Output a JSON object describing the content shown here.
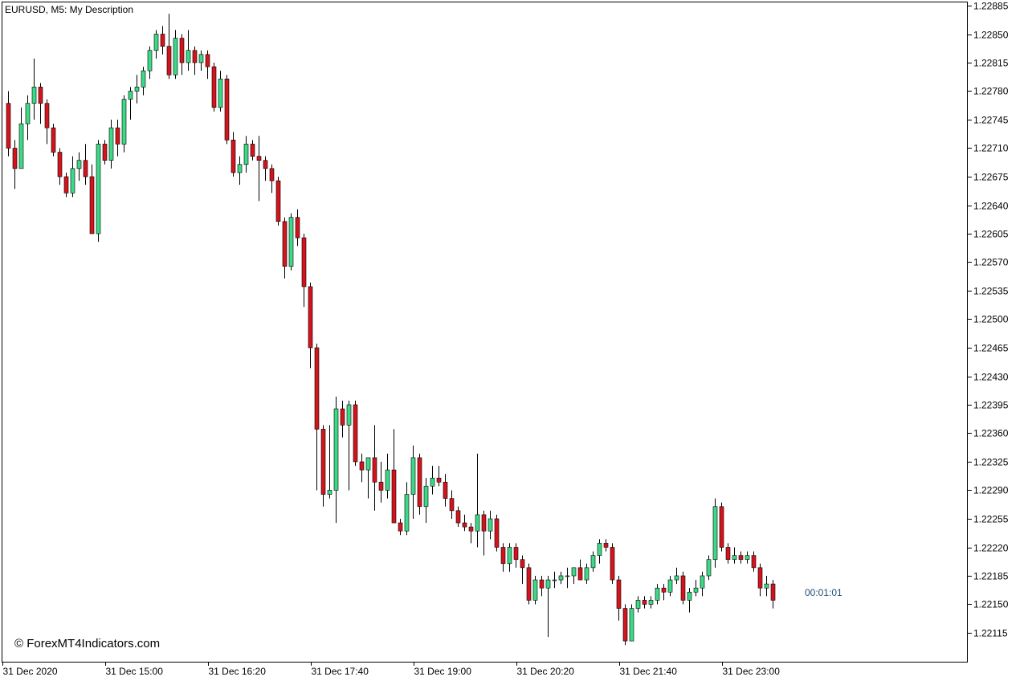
{
  "header": {
    "symbol_line": "EURUSD, M5:  My Description"
  },
  "watermark": "© ForexMT4Indicators.com",
  "timer": "00:01:01",
  "colors": {
    "bull": "#3cd986",
    "bear": "#d4141c",
    "wick": "#000000",
    "background": "#ffffff",
    "frame": "#000000"
  },
  "chart_data": {
    "type": "candlestick",
    "symbol": "EURUSD",
    "timeframe": "M5",
    "ylim": [
      1.2209,
      1.22895
    ],
    "yticks": [
      "1.22885",
      "1.22850",
      "1.22815",
      "1.22780",
      "1.22745",
      "1.22710",
      "1.22675",
      "1.22640",
      "1.22605",
      "1.22570",
      "1.22535",
      "1.22500",
      "1.22465",
      "1.22430",
      "1.22395",
      "1.22360",
      "1.22325",
      "1.22290",
      "1.22255",
      "1.22220",
      "1.22185",
      "1.22150",
      "1.22115"
    ],
    "xticks": [
      {
        "label": "31 Dec 2020",
        "bar": 0
      },
      {
        "label": "31 Dec 15:00",
        "bar": 16
      },
      {
        "label": "31 Dec 16:20",
        "bar": 32
      },
      {
        "label": "31 Dec 17:40",
        "bar": 48
      },
      {
        "label": "31 Dec 19:00",
        "bar": 64
      },
      {
        "label": "31 Dec 20:20",
        "bar": 80
      },
      {
        "label": "31 Dec 21:40",
        "bar": 96
      },
      {
        "label": "31 Dec 23:00",
        "bar": 112
      }
    ],
    "grid": false,
    "candles": [
      {
        "o": 1.22765,
        "h": 1.2278,
        "l": 1.227,
        "c": 1.2271
      },
      {
        "o": 1.2271,
        "h": 1.2272,
        "l": 1.2266,
        "c": 1.22685
      },
      {
        "o": 1.22685,
        "h": 1.2276,
        "l": 1.22685,
        "c": 1.2274
      },
      {
        "o": 1.2274,
        "h": 1.22775,
        "l": 1.2272,
        "c": 1.22765
      },
      {
        "o": 1.22765,
        "h": 1.2282,
        "l": 1.22745,
        "c": 1.22785
      },
      {
        "o": 1.22785,
        "h": 1.2279,
        "l": 1.2274,
        "c": 1.22765
      },
      {
        "o": 1.22765,
        "h": 1.2277,
        "l": 1.22715,
        "c": 1.22735
      },
      {
        "o": 1.22735,
        "h": 1.2274,
        "l": 1.227,
        "c": 1.22705
      },
      {
        "o": 1.22705,
        "h": 1.2271,
        "l": 1.22665,
        "c": 1.22675
      },
      {
        "o": 1.22675,
        "h": 1.2268,
        "l": 1.2265,
        "c": 1.22655
      },
      {
        "o": 1.22655,
        "h": 1.227,
        "l": 1.2265,
        "c": 1.22685
      },
      {
        "o": 1.22685,
        "h": 1.22705,
        "l": 1.2267,
        "c": 1.22695
      },
      {
        "o": 1.22695,
        "h": 1.22715,
        "l": 1.22665,
        "c": 1.22675
      },
      {
        "o": 1.22675,
        "h": 1.2269,
        "l": 1.22605,
        "c": 1.22605
      },
      {
        "o": 1.22605,
        "h": 1.2272,
        "l": 1.22595,
        "c": 1.22715
      },
      {
        "o": 1.22715,
        "h": 1.2272,
        "l": 1.2269,
        "c": 1.22695
      },
      {
        "o": 1.22695,
        "h": 1.22745,
        "l": 1.22685,
        "c": 1.22735
      },
      {
        "o": 1.22735,
        "h": 1.22745,
        "l": 1.227,
        "c": 1.22715
      },
      {
        "o": 1.22715,
        "h": 1.22775,
        "l": 1.22705,
        "c": 1.2277
      },
      {
        "o": 1.2277,
        "h": 1.22785,
        "l": 1.22745,
        "c": 1.2278
      },
      {
        "o": 1.2278,
        "h": 1.228,
        "l": 1.22765,
        "c": 1.22785
      },
      {
        "o": 1.22785,
        "h": 1.2281,
        "l": 1.22775,
        "c": 1.22805
      },
      {
        "o": 1.22805,
        "h": 1.22835,
        "l": 1.22795,
        "c": 1.2283
      },
      {
        "o": 1.2283,
        "h": 1.22855,
        "l": 1.2282,
        "c": 1.2285
      },
      {
        "o": 1.2285,
        "h": 1.2286,
        "l": 1.22825,
        "c": 1.22835
      },
      {
        "o": 1.22835,
        "h": 1.22875,
        "l": 1.22795,
        "c": 1.228
      },
      {
        "o": 1.228,
        "h": 1.22855,
        "l": 1.22795,
        "c": 1.22845
      },
      {
        "o": 1.22845,
        "h": 1.2285,
        "l": 1.228,
        "c": 1.22815
      },
      {
        "o": 1.22815,
        "h": 1.22855,
        "l": 1.22805,
        "c": 1.2283
      },
      {
        "o": 1.2283,
        "h": 1.22835,
        "l": 1.228,
        "c": 1.22815
      },
      {
        "o": 1.22815,
        "h": 1.2283,
        "l": 1.22805,
        "c": 1.22825
      },
      {
        "o": 1.22825,
        "h": 1.2283,
        "l": 1.22795,
        "c": 1.2281
      },
      {
        "o": 1.2281,
        "h": 1.22815,
        "l": 1.22755,
        "c": 1.2276
      },
      {
        "o": 1.2276,
        "h": 1.22805,
        "l": 1.22755,
        "c": 1.22795
      },
      {
        "o": 1.22795,
        "h": 1.228,
        "l": 1.22715,
        "c": 1.2272
      },
      {
        "o": 1.2272,
        "h": 1.2273,
        "l": 1.22675,
        "c": 1.2268
      },
      {
        "o": 1.2268,
        "h": 1.227,
        "l": 1.22665,
        "c": 1.2269
      },
      {
        "o": 1.2269,
        "h": 1.22725,
        "l": 1.2268,
        "c": 1.22715
      },
      {
        "o": 1.22715,
        "h": 1.2272,
        "l": 1.22695,
        "c": 1.227
      },
      {
        "o": 1.227,
        "h": 1.22725,
        "l": 1.22645,
        "c": 1.22695
      },
      {
        "o": 1.22695,
        "h": 1.227,
        "l": 1.2267,
        "c": 1.22685
      },
      {
        "o": 1.22685,
        "h": 1.2269,
        "l": 1.22655,
        "c": 1.2267
      },
      {
        "o": 1.2267,
        "h": 1.22675,
        "l": 1.22615,
        "c": 1.2262
      },
      {
        "o": 1.2262,
        "h": 1.22625,
        "l": 1.2255,
        "c": 1.22565
      },
      {
        "o": 1.22565,
        "h": 1.2263,
        "l": 1.2256,
        "c": 1.22625
      },
      {
        "o": 1.22625,
        "h": 1.22635,
        "l": 1.2259,
        "c": 1.226
      },
      {
        "o": 1.226,
        "h": 1.22605,
        "l": 1.22515,
        "c": 1.2254
      },
      {
        "o": 1.2254,
        "h": 1.22545,
        "l": 1.2244,
        "c": 1.22465
      },
      {
        "o": 1.22465,
        "h": 1.2247,
        "l": 1.2229,
        "c": 1.22365
      },
      {
        "o": 1.22365,
        "h": 1.2237,
        "l": 1.2227,
        "c": 1.22285
      },
      {
        "o": 1.22285,
        "h": 1.2237,
        "l": 1.2228,
        "c": 1.2229
      },
      {
        "o": 1.2229,
        "h": 1.22405,
        "l": 1.2225,
        "c": 1.2239
      },
      {
        "o": 1.2239,
        "h": 1.224,
        "l": 1.22355,
        "c": 1.2237
      },
      {
        "o": 1.2237,
        "h": 1.224,
        "l": 1.2229,
        "c": 1.22395
      },
      {
        "o": 1.22395,
        "h": 1.224,
        "l": 1.2232,
        "c": 1.22325
      },
      {
        "o": 1.22325,
        "h": 1.22335,
        "l": 1.223,
        "c": 1.22315
      },
      {
        "o": 1.22315,
        "h": 1.2233,
        "l": 1.2228,
        "c": 1.2233
      },
      {
        "o": 1.2233,
        "h": 1.2237,
        "l": 1.22265,
        "c": 1.223
      },
      {
        "o": 1.223,
        "h": 1.22325,
        "l": 1.22275,
        "c": 1.2229
      },
      {
        "o": 1.2229,
        "h": 1.22335,
        "l": 1.2228,
        "c": 1.22315
      },
      {
        "o": 1.22315,
        "h": 1.22365,
        "l": 1.2225,
        "c": 1.2225
      },
      {
        "o": 1.2225,
        "h": 1.22255,
        "l": 1.22235,
        "c": 1.2224
      },
      {
        "o": 1.2224,
        "h": 1.223,
        "l": 1.22235,
        "c": 1.22285
      },
      {
        "o": 1.22285,
        "h": 1.22345,
        "l": 1.22255,
        "c": 1.2233
      },
      {
        "o": 1.2233,
        "h": 1.22335,
        "l": 1.2226,
        "c": 1.2227
      },
      {
        "o": 1.2227,
        "h": 1.22305,
        "l": 1.2225,
        "c": 1.22295
      },
      {
        "o": 1.22295,
        "h": 1.2232,
        "l": 1.22285,
        "c": 1.22305
      },
      {
        "o": 1.22305,
        "h": 1.2232,
        "l": 1.22295,
        "c": 1.223
      },
      {
        "o": 1.223,
        "h": 1.2231,
        "l": 1.2227,
        "c": 1.2228
      },
      {
        "o": 1.2228,
        "h": 1.2229,
        "l": 1.22255,
        "c": 1.22265
      },
      {
        "o": 1.22265,
        "h": 1.2227,
        "l": 1.22245,
        "c": 1.2225
      },
      {
        "o": 1.2225,
        "h": 1.2226,
        "l": 1.2224,
        "c": 1.22245
      },
      {
        "o": 1.22245,
        "h": 1.2225,
        "l": 1.22225,
        "c": 1.2224
      },
      {
        "o": 1.2224,
        "h": 1.22335,
        "l": 1.2222,
        "c": 1.2226
      },
      {
        "o": 1.2226,
        "h": 1.22265,
        "l": 1.2221,
        "c": 1.2224
      },
      {
        "o": 1.2224,
        "h": 1.22265,
        "l": 1.2223,
        "c": 1.22255
      },
      {
        "o": 1.22255,
        "h": 1.2226,
        "l": 1.22215,
        "c": 1.2222
      },
      {
        "o": 1.2222,
        "h": 1.22225,
        "l": 1.2219,
        "c": 1.222
      },
      {
        "o": 1.222,
        "h": 1.22225,
        "l": 1.2219,
        "c": 1.2222
      },
      {
        "o": 1.2222,
        "h": 1.22225,
        "l": 1.22195,
        "c": 1.22205
      },
      {
        "o": 1.22205,
        "h": 1.2221,
        "l": 1.22175,
        "c": 1.22195
      },
      {
        "o": 1.22195,
        "h": 1.222,
        "l": 1.2215,
        "c": 1.22155
      },
      {
        "o": 1.22155,
        "h": 1.22185,
        "l": 1.2215,
        "c": 1.2218
      },
      {
        "o": 1.2218,
        "h": 1.22185,
        "l": 1.2216,
        "c": 1.2217
      },
      {
        "o": 1.2217,
        "h": 1.22185,
        "l": 1.2211,
        "c": 1.2218
      },
      {
        "o": 1.2218,
        "h": 1.2219,
        "l": 1.2217,
        "c": 1.2218
      },
      {
        "o": 1.2218,
        "h": 1.2219,
        "l": 1.22175,
        "c": 1.22185
      },
      {
        "o": 1.22185,
        "h": 1.22195,
        "l": 1.2217,
        "c": 1.22185
      },
      {
        "o": 1.22185,
        "h": 1.22195,
        "l": 1.22175,
        "c": 1.22195
      },
      {
        "o": 1.22195,
        "h": 1.22205,
        "l": 1.2218,
        "c": 1.2218
      },
      {
        "o": 1.2218,
        "h": 1.222,
        "l": 1.22175,
        "c": 1.22195
      },
      {
        "o": 1.22195,
        "h": 1.22215,
        "l": 1.2219,
        "c": 1.2221
      },
      {
        "o": 1.2221,
        "h": 1.2223,
        "l": 1.222,
        "c": 1.22225
      },
      {
        "o": 1.22225,
        "h": 1.2223,
        "l": 1.22215,
        "c": 1.2222
      },
      {
        "o": 1.2222,
        "h": 1.22225,
        "l": 1.22175,
        "c": 1.2218
      },
      {
        "o": 1.2218,
        "h": 1.22185,
        "l": 1.2213,
        "c": 1.22145
      },
      {
        "o": 1.22145,
        "h": 1.2215,
        "l": 1.221,
        "c": 1.22105
      },
      {
        "o": 1.22105,
        "h": 1.2215,
        "l": 1.22105,
        "c": 1.22145
      },
      {
        "o": 1.22145,
        "h": 1.2216,
        "l": 1.2214,
        "c": 1.22155
      },
      {
        "o": 1.22155,
        "h": 1.2216,
        "l": 1.22145,
        "c": 1.2215
      },
      {
        "o": 1.2215,
        "h": 1.2216,
        "l": 1.22145,
        "c": 1.22155
      },
      {
        "o": 1.22155,
        "h": 1.22175,
        "l": 1.2215,
        "c": 1.2217
      },
      {
        "o": 1.2217,
        "h": 1.22175,
        "l": 1.22155,
        "c": 1.22165
      },
      {
        "o": 1.22165,
        "h": 1.22185,
        "l": 1.2216,
        "c": 1.2218
      },
      {
        "o": 1.2218,
        "h": 1.22195,
        "l": 1.22175,
        "c": 1.22185
      },
      {
        "o": 1.22185,
        "h": 1.2219,
        "l": 1.2215,
        "c": 1.22155
      },
      {
        "o": 1.22155,
        "h": 1.2217,
        "l": 1.2214,
        "c": 1.22165
      },
      {
        "o": 1.22165,
        "h": 1.2218,
        "l": 1.2216,
        "c": 1.2217
      },
      {
        "o": 1.2217,
        "h": 1.2219,
        "l": 1.2216,
        "c": 1.22185
      },
      {
        "o": 1.22185,
        "h": 1.2221,
        "l": 1.2218,
        "c": 1.22205
      },
      {
        "o": 1.22205,
        "h": 1.2228,
        "l": 1.22195,
        "c": 1.2227
      },
      {
        "o": 1.2227,
        "h": 1.22275,
        "l": 1.22215,
        "c": 1.2222
      },
      {
        "o": 1.2222,
        "h": 1.22225,
        "l": 1.222,
        "c": 1.22205
      },
      {
        "o": 1.22205,
        "h": 1.2222,
        "l": 1.222,
        "c": 1.2221
      },
      {
        "o": 1.2221,
        "h": 1.22215,
        "l": 1.222,
        "c": 1.22205
      },
      {
        "o": 1.22205,
        "h": 1.22215,
        "l": 1.222,
        "c": 1.2221
      },
      {
        "o": 1.2221,
        "h": 1.22215,
        "l": 1.2219,
        "c": 1.22195
      },
      {
        "o": 1.22195,
        "h": 1.222,
        "l": 1.2216,
        "c": 1.2217
      },
      {
        "o": 1.2217,
        "h": 1.22185,
        "l": 1.2216,
        "c": 1.22175
      },
      {
        "o": 1.22175,
        "h": 1.2218,
        "l": 1.22145,
        "c": 1.22155
      }
    ]
  }
}
